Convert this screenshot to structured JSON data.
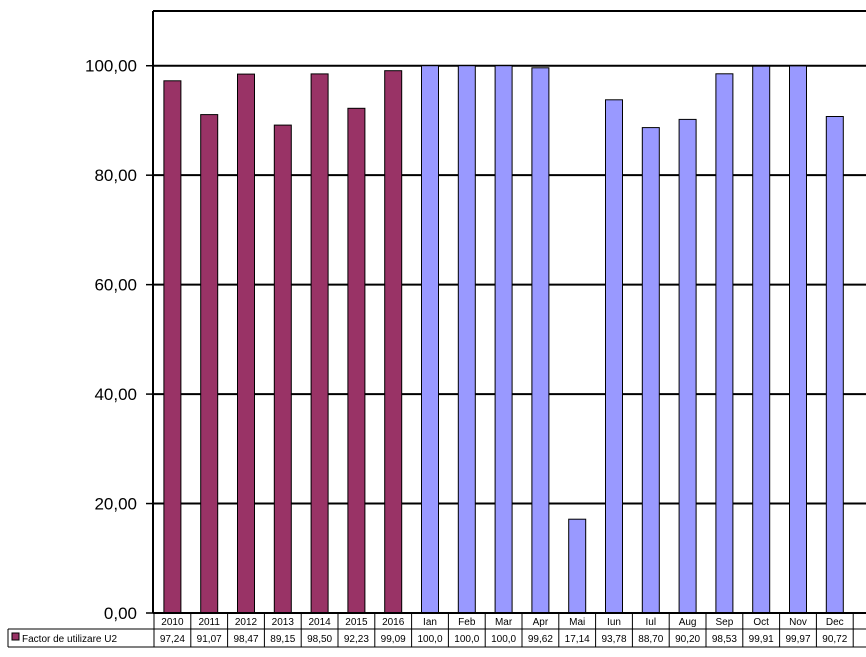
{
  "chart_data": {
    "type": "bar",
    "categories": [
      "2010",
      "2011",
      "2012",
      "2013",
      "2014",
      "2015",
      "2016",
      "Ian",
      "Feb",
      "Mar",
      "Apr",
      "Mai",
      "Iun",
      "Iul",
      "Aug",
      "Sep",
      "Oct",
      "Nov",
      "Dec"
    ],
    "series": [
      {
        "name": "Factor de utilizare U2",
        "values": [
          97.24,
          91.07,
          98.47,
          89.15,
          98.5,
          92.23,
          99.09,
          100.0,
          100.0,
          100.0,
          99.62,
          17.14,
          93.78,
          88.7,
          90.2,
          98.53,
          99.91,
          99.97,
          90.72
        ],
        "labels": [
          "97,24",
          "91,07",
          "98,47",
          "89,15",
          "98,50",
          "92,23",
          "99,09",
          "100,0",
          "100,0",
          "100,0",
          "99,62",
          "17,14",
          "93,78",
          "88,70",
          "90,20",
          "98,53",
          "99,91",
          "99,97",
          "90,72"
        ]
      }
    ],
    "yaxis": {
      "ylim": [
        0,
        110
      ],
      "ticks": [
        0,
        20,
        40,
        60,
        80,
        100
      ],
      "tick_labels": [
        "0,00",
        "20,00",
        "40,00",
        "60,00",
        "80,00",
        "100,00"
      ]
    },
    "grid": true,
    "legend": "data-table-bottom",
    "colors": {
      "years": "#993366",
      "months": "#9999ff",
      "border": "#000000",
      "background": "#ffffff"
    },
    "year_count": 7
  }
}
